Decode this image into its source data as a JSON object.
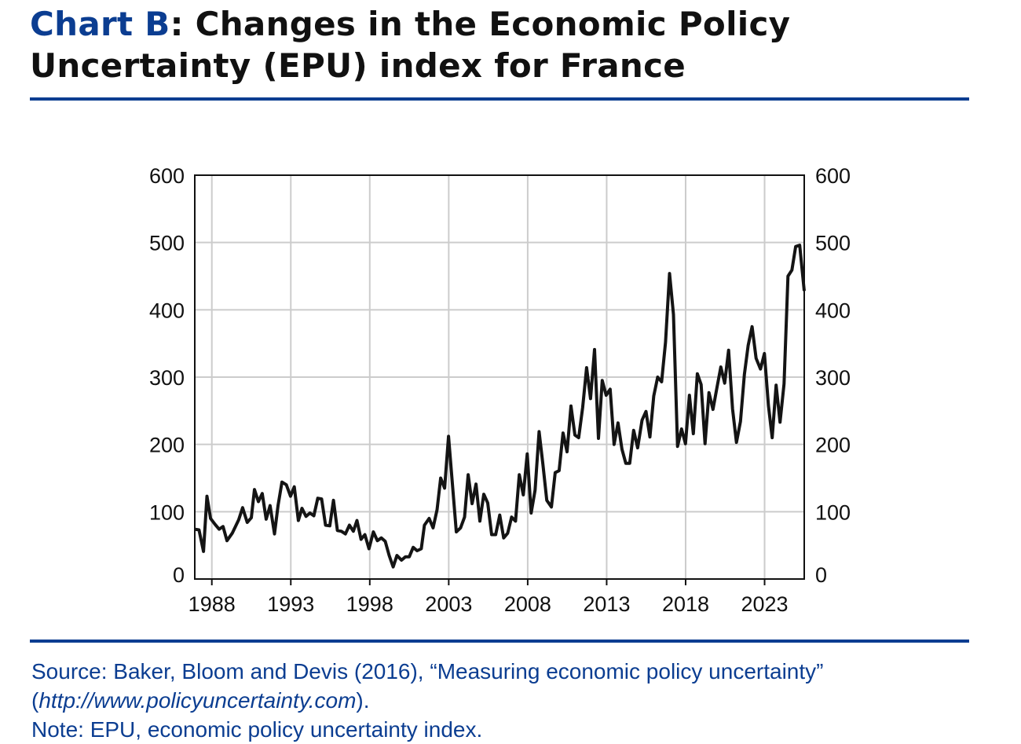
{
  "title": {
    "lead": "Chart B",
    "rest": ": Changes in the Economic Policy",
    "line2": "Uncertainty (EPU) index for France"
  },
  "colors": {
    "accent": "#0b3d91",
    "line": "#141414",
    "grid": "#cccccc"
  },
  "chart_data": {
    "type": "line",
    "title": "",
    "xlabel": "",
    "ylabel": "",
    "xlim": [
      1986.92,
      2025.51
    ],
    "ylim": [
      0,
      600
    ],
    "x_ticks": [
      1988,
      1993,
      1998,
      2003,
      2008,
      2013,
      2018,
      2023
    ],
    "x_tick_labels": [
      "1988",
      "1993",
      "1998",
      "2003",
      "2008",
      "2013",
      "2018",
      "2023"
    ],
    "y_ticks": [
      0,
      100,
      200,
      300,
      400,
      500,
      600
    ],
    "y_tick_labels": [
      "0",
      "100",
      "200",
      "300",
      "400",
      "500",
      "600"
    ],
    "y_axis_sides": [
      "left",
      "right"
    ],
    "grid": true,
    "legend": "none",
    "series": [
      {
        "x": [
          1986.92,
          1987.19,
          1987.47,
          1987.69,
          1987.92,
          1988.21,
          1988.46,
          1988.71,
          1988.96,
          1989.29,
          1989.7,
          1989.95,
          1990.24,
          1990.5,
          1990.7,
          1990.95,
          1991.19,
          1991.44,
          1991.69,
          1991.97,
          1992.19,
          1992.44,
          1992.72,
          1992.98,
          1993.22,
          1993.48,
          1993.71,
          1993.96,
          1994.21,
          1994.46,
          1994.71,
          1994.95,
          1995.2,
          1995.47,
          1995.7,
          1995.95,
          1996.2,
          1996.46,
          1996.71,
          1996.96,
          1997.19,
          1997.45,
          1997.69,
          1997.95,
          1998.23,
          1998.48,
          1998.73,
          1998.98,
          1999.23,
          1999.48,
          1999.72,
          2000.01,
          2000.26,
          2000.5,
          2000.75,
          2001.0,
          2001.26,
          2001.46,
          2001.76,
          2002.01,
          2002.26,
          2002.49,
          2002.74,
          2002.99,
          2003.48,
          2003.75,
          2004.0,
          2004.23,
          2004.48,
          2004.73,
          2004.97,
          2005.22,
          2005.47,
          2005.72,
          2005.97,
          2006.23,
          2006.48,
          2006.73,
          2006.98,
          2007.23,
          2007.47,
          2007.72,
          2007.97,
          2008.22,
          2008.47,
          2008.72,
          2008.96,
          2009.21,
          2009.5,
          2009.74,
          2009.99,
          2010.24,
          2010.49,
          2010.74,
          2010.99,
          2011.23,
          2011.48,
          2011.73,
          2011.98,
          2012.23,
          2012.48,
          2012.72,
          2012.97,
          2013.22,
          2013.47,
          2013.72,
          2013.97,
          2014.21,
          2014.46,
          2014.71,
          2014.96,
          2015.24,
          2015.49,
          2015.74,
          2015.98,
          2016.23,
          2016.48,
          2016.73,
          2016.98,
          2017.23,
          2017.49,
          2017.74,
          2017.99,
          2018.24,
          2018.49,
          2018.74,
          2018.98,
          2019.23,
          2019.48,
          2019.73,
          2019.98,
          2020.23,
          2020.47,
          2020.72,
          2020.97,
          2021.22,
          2021.47,
          2021.72,
          2021.96,
          2022.21,
          2022.46,
          2022.74,
          2022.99,
          2023.24,
          2023.48,
          2023.73,
          2023.98,
          2024.23,
          2024.48,
          2024.73,
          2024.97,
          2025.22,
          2025.51
        ],
        "y": [
          74,
          73,
          41,
          123,
          90,
          81,
          74,
          78,
          57,
          68,
          88,
          106,
          84,
          91,
          133,
          115,
          127,
          89,
          109,
          67,
          109,
          144,
          140,
          123,
          137,
          87,
          105,
          93,
          98,
          94,
          120,
          119,
          80,
          79,
          117,
          72,
          71,
          67,
          80,
          71,
          87,
          59,
          66,
          45,
          70,
          57,
          61,
          56,
          35,
          18,
          35,
          28,
          33,
          33,
          47,
          42,
          45,
          80,
          90,
          76,
          103,
          150,
          135,
          212,
          70,
          76,
          92,
          155,
          112,
          141,
          86,
          126,
          113,
          66,
          66,
          95,
          61,
          68,
          92,
          86,
          155,
          125,
          186,
          98,
          132,
          219,
          171,
          117,
          107,
          158,
          161,
          217,
          189,
          257,
          214,
          210,
          255,
          314,
          268,
          341,
          209,
          295,
          273,
          282,
          200,
          232,
          193,
          172,
          172,
          221,
          195,
          236,
          249,
          211,
          272,
          300,
          293,
          352,
          454,
          393,
          197,
          223,
          201,
          273,
          216,
          305,
          289,
          201,
          277,
          252,
          284,
          315,
          291,
          340,
          253,
          203,
          234,
          304,
          347,
          375,
          328,
          312,
          335,
          258,
          210,
          288,
          233,
          290,
          450,
          459,
          494,
          496,
          428
        ]
      }
    ]
  },
  "footer": {
    "source_line1": "Source: Baker, Bloom and Devis (2016), “Measuring economic policy uncertainty”",
    "source_paren_open": "(",
    "source_url": "http://www.policyuncertainty.com",
    "source_paren_close": ").",
    "note": "Note: EPU, economic policy uncertainty index."
  }
}
